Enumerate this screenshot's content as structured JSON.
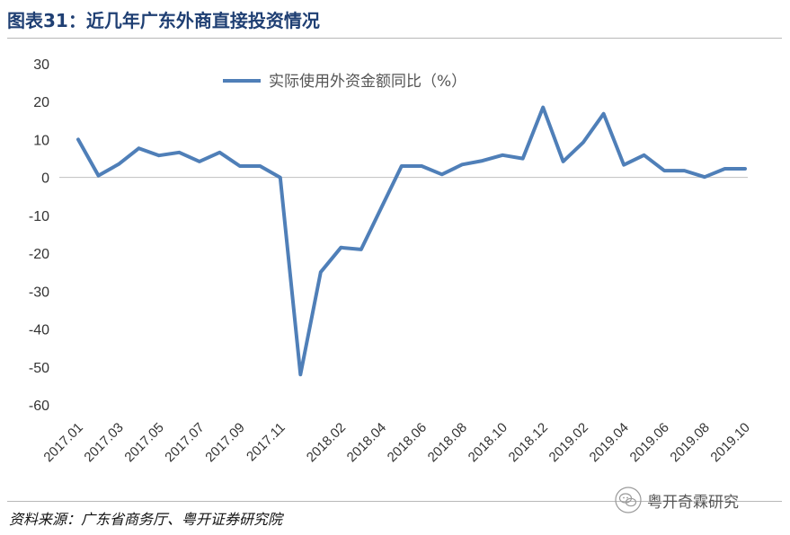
{
  "header": {
    "title": "图表31：近几年广东外商直接投资情况"
  },
  "chart_data": {
    "type": "line",
    "title": "",
    "xlabel": "",
    "ylabel": "",
    "ylim": [
      -60,
      30
    ],
    "yticks": [
      30,
      20,
      10,
      0,
      -10,
      -20,
      -30,
      -40,
      -50,
      -60
    ],
    "grid": false,
    "legend_position": "top-center",
    "line_color": "#4f7fb8",
    "categories": [
      "2017.01",
      "2017.02",
      "2017.03",
      "2017.04",
      "2017.05",
      "2017.06",
      "2017.07",
      "2017.08",
      "2017.09",
      "2017.10",
      "2017.11",
      "2017.12",
      "2018.01",
      "2018.02",
      "2018.03",
      "2018.04",
      "2018.05",
      "2018.06",
      "2018.07",
      "2018.08",
      "2018.09",
      "2018.10",
      "2018.11",
      "2018.12",
      "2019.01",
      "2019.02",
      "2019.03",
      "2019.04",
      "2019.05",
      "2019.06",
      "2019.07",
      "2019.08",
      "2019.09",
      "2019.10"
    ],
    "xtick_labels": [
      "2017.01",
      "2017.03",
      "2017.05",
      "2017.07",
      "2017.09",
      "2017.11",
      "2018.02",
      "2018.04",
      "2018.06",
      "2018.08",
      "2018.10",
      "2018.12",
      "2019.02",
      "2019.04",
      "2019.06",
      "2019.08",
      "2019.10"
    ],
    "series": [
      {
        "name": "实际使用外资金额同比（%）",
        "values": [
          10,
          0.5,
          3.5,
          7.7,
          5.8,
          6.6,
          4.2,
          6.6,
          3.0,
          3.0,
          0,
          -52,
          -25,
          -18.5,
          -19,
          -8,
          3.0,
          3.0,
          0.8,
          3.4,
          4.4,
          5.9,
          5.0,
          18.5,
          4.2,
          9.3,
          16.8,
          3.3,
          5.9,
          1.8,
          1.8,
          0.1,
          2.3,
          2.3
        ]
      }
    ]
  },
  "footer": {
    "source": "资料来源：广东省商务厅、粤开证券研究院",
    "watermark": "粤开奇霖研究"
  }
}
